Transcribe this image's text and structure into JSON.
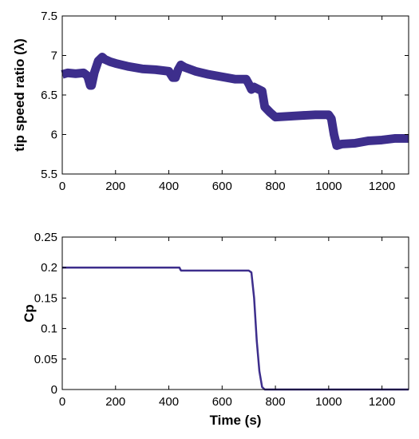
{
  "chart_data": [
    {
      "type": "line",
      "xlabel": "",
      "ylabel": "tip speed ratio (λ)",
      "xlim": [
        0,
        1300
      ],
      "ylim": [
        5.5,
        7.5
      ],
      "xticks": [
        0,
        200,
        400,
        600,
        800,
        1000,
        1200
      ],
      "yticks": [
        5.5,
        6,
        6.5,
        7,
        7.5
      ],
      "xtick_labels": [
        "0",
        "200",
        "400",
        "600",
        "800",
        "1000",
        "1200"
      ],
      "ytick_labels": [
        "5.5",
        "6",
        "6.5",
        "7",
        "7.5"
      ],
      "grid": false,
      "band_halfwidth": 0.055,
      "series": [
        {
          "color": "#3d2e8c",
          "x": [
            0,
            20,
            50,
            80,
            95,
            105,
            110,
            120,
            135,
            150,
            160,
            180,
            200,
            250,
            300,
            350,
            400,
            415,
            425,
            435,
            445,
            460,
            500,
            550,
            600,
            650,
            690,
            700,
            710,
            720,
            750,
            760,
            780,
            800,
            850,
            900,
            950,
            1000,
            1010,
            1020,
            1030,
            1050,
            1100,
            1150,
            1200,
            1250,
            1300
          ],
          "y": [
            6.76,
            6.78,
            6.77,
            6.78,
            6.74,
            6.62,
            6.62,
            6.78,
            6.93,
            6.98,
            6.95,
            6.92,
            6.9,
            6.86,
            6.83,
            6.82,
            6.8,
            6.72,
            6.72,
            6.82,
            6.88,
            6.85,
            6.8,
            6.76,
            6.73,
            6.7,
            6.7,
            6.64,
            6.57,
            6.6,
            6.55,
            6.35,
            6.28,
            6.22,
            6.23,
            6.24,
            6.25,
            6.25,
            6.2,
            6.0,
            5.86,
            5.88,
            5.89,
            5.92,
            5.93,
            5.95,
            5.95
          ]
        }
      ]
    },
    {
      "type": "line",
      "xlabel": "Time (s)",
      "ylabel": "Cp",
      "xlim": [
        0,
        1300
      ],
      "ylim": [
        0,
        0.25
      ],
      "xticks": [
        0,
        200,
        400,
        600,
        800,
        1000,
        1200
      ],
      "yticks": [
        0,
        0.05,
        0.1,
        0.15,
        0.2,
        0.25
      ],
      "xtick_labels": [
        "0",
        "200",
        "400",
        "600",
        "800",
        "1000",
        "1200"
      ],
      "ytick_labels": [
        "0",
        "0.05",
        "0.1",
        "0.15",
        "0.2",
        "0.25"
      ],
      "grid": false,
      "band_halfwidth": 0,
      "series": [
        {
          "color": "#3d2e8c",
          "x": [
            0,
            200,
            440,
            443,
            446,
            600,
            700,
            710,
            720,
            730,
            740,
            750,
            760,
            800,
            1000,
            1300
          ],
          "y": [
            0.2,
            0.2,
            0.2,
            0.197,
            0.195,
            0.195,
            0.195,
            0.192,
            0.15,
            0.08,
            0.03,
            0.004,
            0.0,
            0.0,
            0.0,
            0.0
          ]
        }
      ]
    }
  ]
}
